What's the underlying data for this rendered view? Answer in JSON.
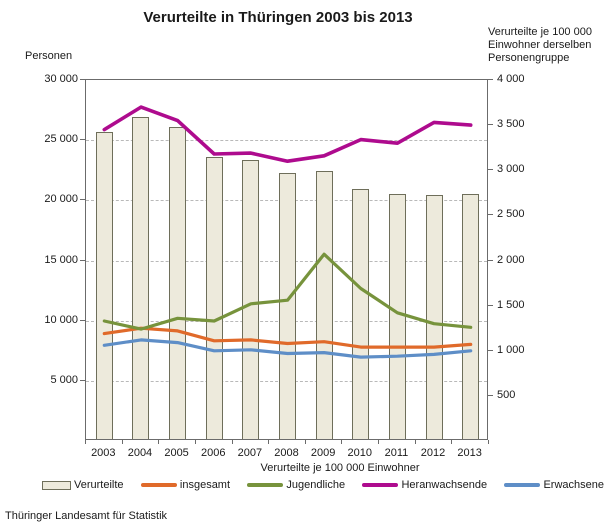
{
  "title": "Verurteilte in Thüringen 2003 bis 2013",
  "footer": "Thüringer Landesamt für Statistik",
  "left_axis": {
    "title": "Personen",
    "max": 30000,
    "ticks": [
      {
        "value": 30000,
        "label": "30 000"
      },
      {
        "value": 25000,
        "label": "25 000"
      },
      {
        "value": 20000,
        "label": "20 000"
      },
      {
        "value": 15000,
        "label": "15 000"
      },
      {
        "value": 10000,
        "label": "10 000"
      },
      {
        "value": 5000,
        "label": "5 000"
      }
    ]
  },
  "right_axis": {
    "title": "Verurteilte je 100 000\nEinwohner derselben\nPersonengruppe",
    "max": 4000,
    "ticks": [
      {
        "value": 4000,
        "label": "4 000"
      },
      {
        "value": 3500,
        "label": "3 500"
      },
      {
        "value": 3000,
        "label": "3 000"
      },
      {
        "value": 2500,
        "label": "2 500"
      },
      {
        "value": 2000,
        "label": "2 000"
      },
      {
        "value": 1500,
        "label": "1 500"
      },
      {
        "value": 1000,
        "label": "1 000"
      },
      {
        "value": 500,
        "label": "500"
      }
    ]
  },
  "x_axis": {
    "sublabel": "Verurteilte je 100 000 Einwohner",
    "labels": [
      "2003",
      "2004",
      "2005",
      "2006",
      "2007",
      "2008",
      "2009",
      "2010",
      "2011",
      "2012",
      "2013"
    ]
  },
  "colors": {
    "bar_fill": "#EDEADC",
    "bar_border": "#6E6E5A",
    "insgesamt": "#E06A2A",
    "jugendliche": "#77933C",
    "heranwachsende": "#AE0B8E",
    "erwachsene": "#5E8EC7",
    "grid": "#b9b9b9",
    "axis": "#6b6b6b"
  },
  "chart_data": {
    "type": "bar+line",
    "title": "Verurteilte in Thüringen 2003 bis 2013",
    "categories": [
      2003,
      2004,
      2005,
      2006,
      2007,
      2008,
      2009,
      2010,
      2011,
      2012,
      2013
    ],
    "grid": "dashed horizontal at left-axis steps of 5000",
    "legend_position": "bottom",
    "bar_series": {
      "name": "Verurteilte",
      "axis": "left",
      "ylabel": "Personen",
      "ylim": [
        0,
        30000
      ],
      "values": [
        25500,
        26800,
        25900,
        23400,
        23200,
        22100,
        22300,
        20800,
        20400,
        20300,
        20400
      ]
    },
    "line_series": [
      {
        "name": "insgesamt",
        "axis": "right",
        "color": "#E06A2A",
        "values": [
          1190,
          1250,
          1220,
          1110,
          1120,
          1080,
          1100,
          1040,
          1040,
          1040,
          1070
        ]
      },
      {
        "name": "Jugendliche",
        "axis": "right",
        "color": "#77933C",
        "values": [
          1330,
          1240,
          1360,
          1330,
          1520,
          1560,
          2070,
          1690,
          1420,
          1300,
          1260
        ]
      },
      {
        "name": "Heranwachsende",
        "axis": "right",
        "color": "#AE0B8E",
        "values": [
          3450,
          3700,
          3550,
          3180,
          3190,
          3100,
          3160,
          3340,
          3300,
          3530,
          3500
        ]
      },
      {
        "name": "Erwachsene",
        "axis": "right",
        "color": "#5E8EC7",
        "values": [
          1060,
          1120,
          1090,
          1000,
          1010,
          970,
          980,
          930,
          940,
          960,
          1000
        ]
      }
    ],
    "right_ylabel": "Verurteilte je 100 000 Einwohner derselben Personengruppe",
    "right_ylim": [
      0,
      4000
    ]
  }
}
